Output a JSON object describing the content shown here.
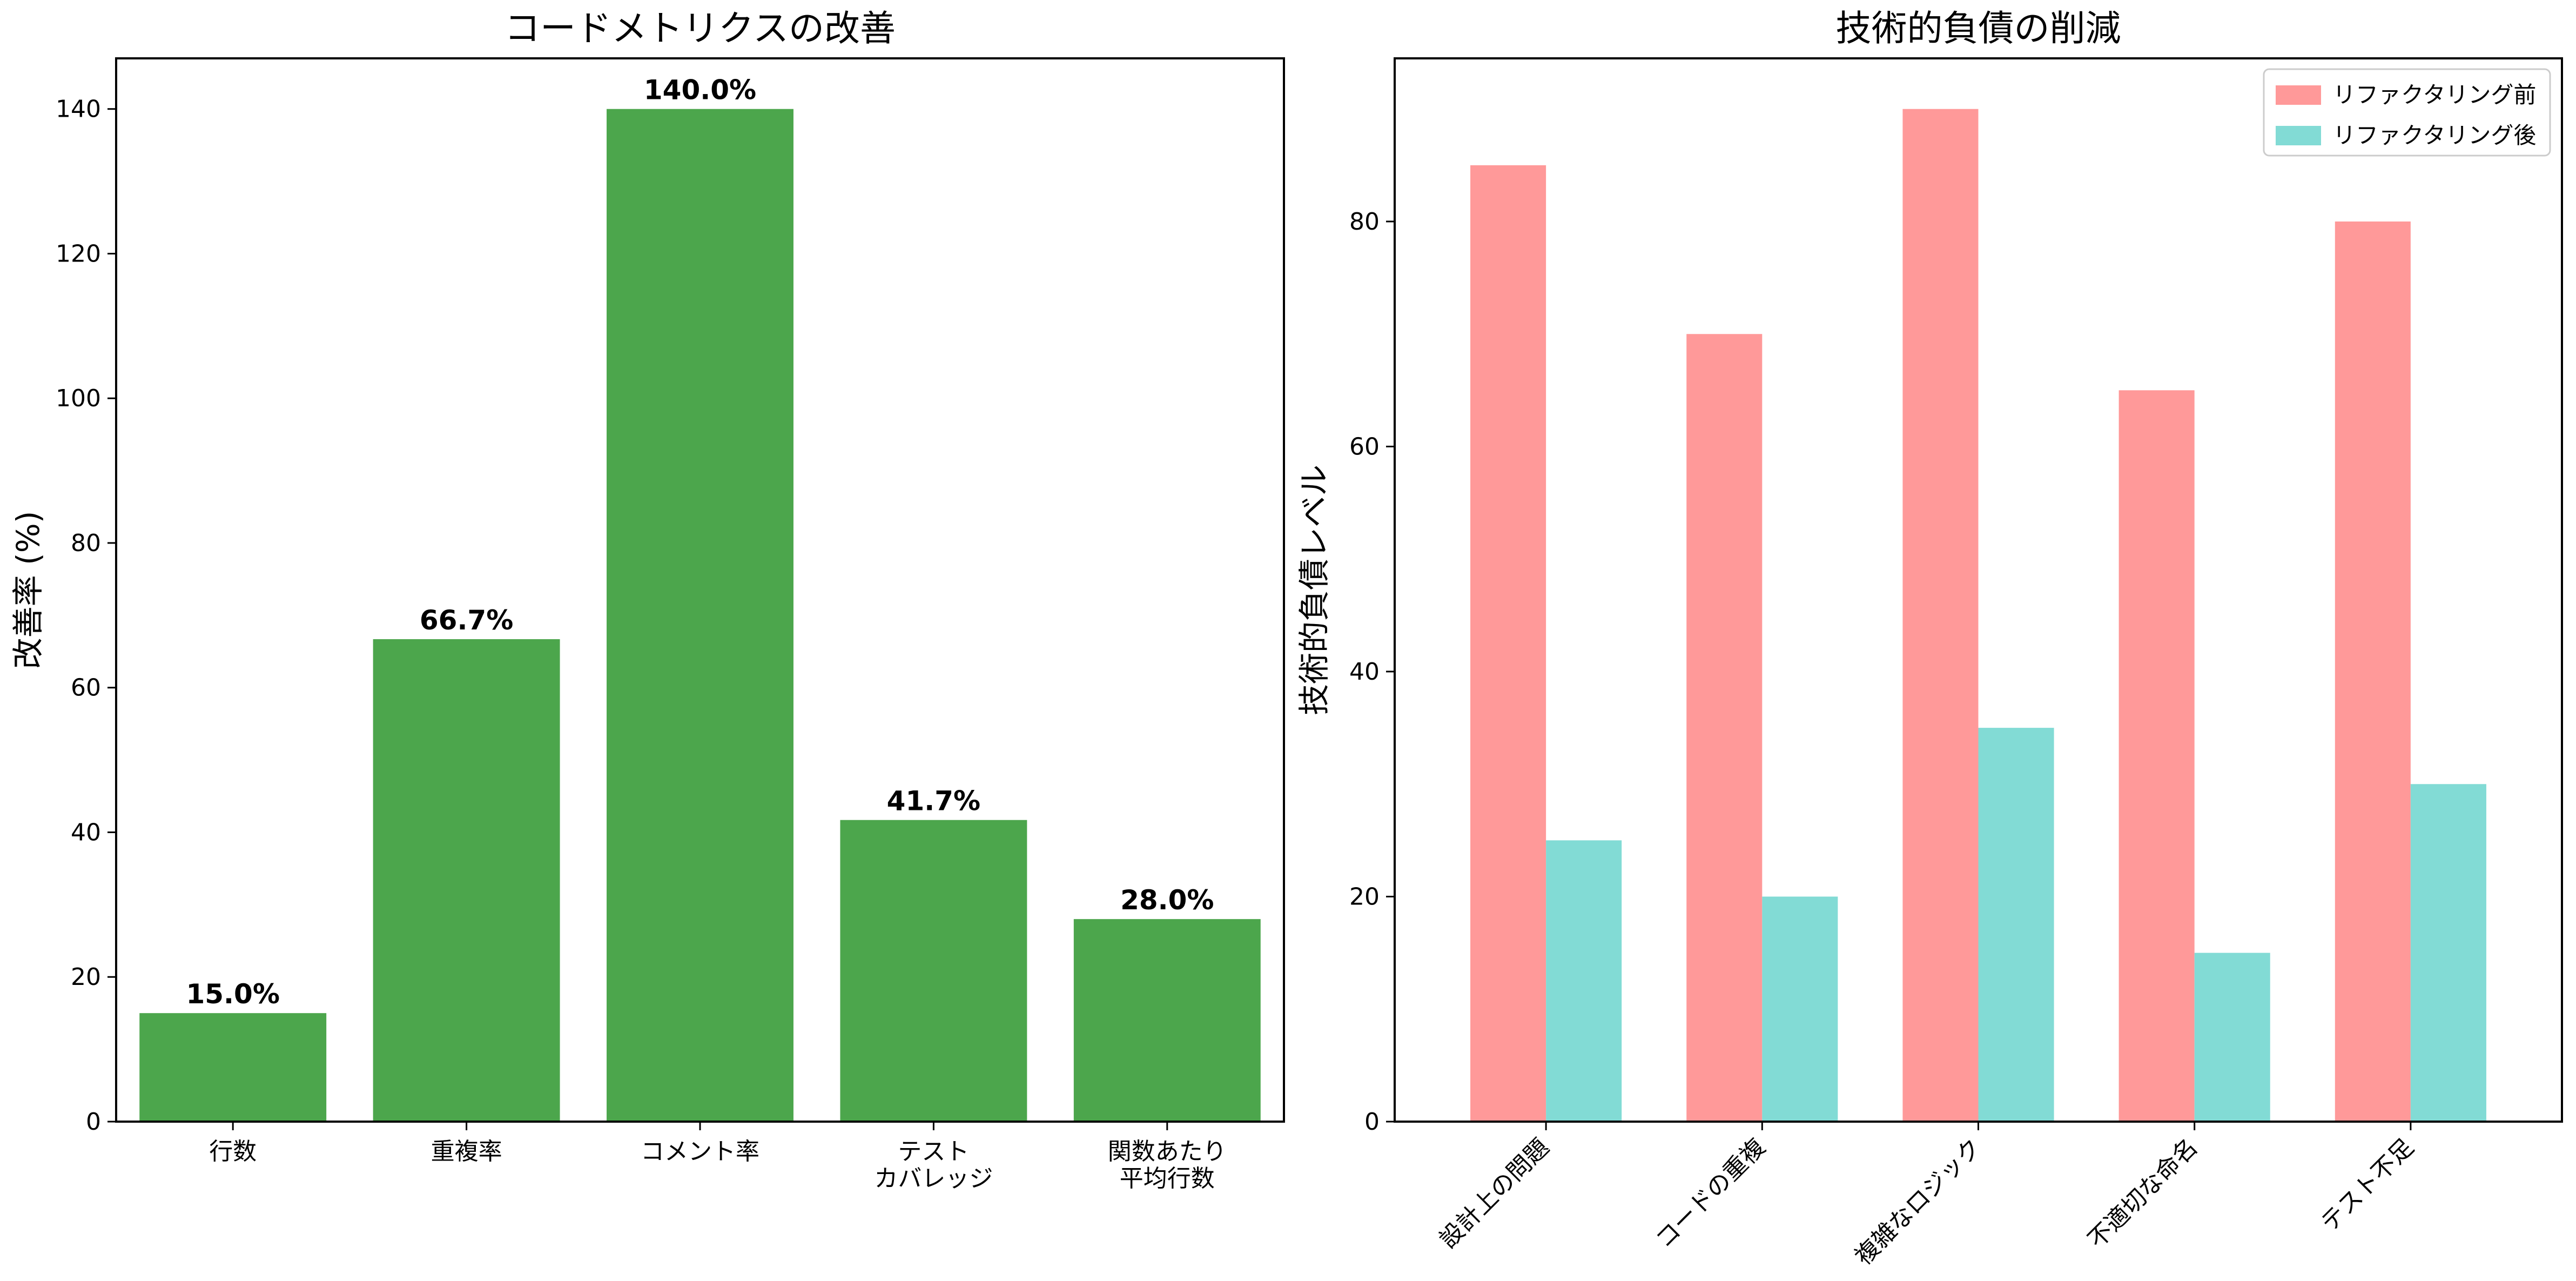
{
  "chart_data": [
    {
      "type": "bar",
      "title": "コードメトリクスの改善",
      "xlabel": "",
      "ylabel": "改善率 (%)",
      "categories": [
        "行数",
        "重複率",
        "コメント率",
        "テスト\nカバレッジ",
        "関数あたり\n平均行数"
      ],
      "values": [
        15.0,
        66.7,
        140.0,
        41.7,
        28.0
      ],
      "value_labels": [
        "15.0%",
        "66.7%",
        "140.0%",
        "41.7%",
        "28.0%"
      ],
      "ylim": [
        0,
        147
      ],
      "yticks": [
        0,
        20,
        40,
        60,
        80,
        100,
        120,
        140
      ],
      "color": "#4ca64c",
      "grid": false
    },
    {
      "type": "bar",
      "title": "技術的負債の削減",
      "xlabel": "",
      "ylabel": "技術的負債レベル",
      "categories": [
        "設計上の問題",
        "コードの重複",
        "複雑なロジック",
        "不適切な命名",
        "テスト不足"
      ],
      "series": [
        {
          "name": "リファクタリング前",
          "values": [
            85,
            70,
            90,
            65,
            80
          ],
          "color": "#ff9999"
        },
        {
          "name": "リファクタリング後",
          "values": [
            25,
            20,
            35,
            15,
            30
          ],
          "color": "#82dbd5"
        }
      ],
      "ylim": [
        0,
        94.5
      ],
      "yticks": [
        0,
        20,
        40,
        60,
        80
      ],
      "legend": "top-right",
      "grid": false
    }
  ]
}
